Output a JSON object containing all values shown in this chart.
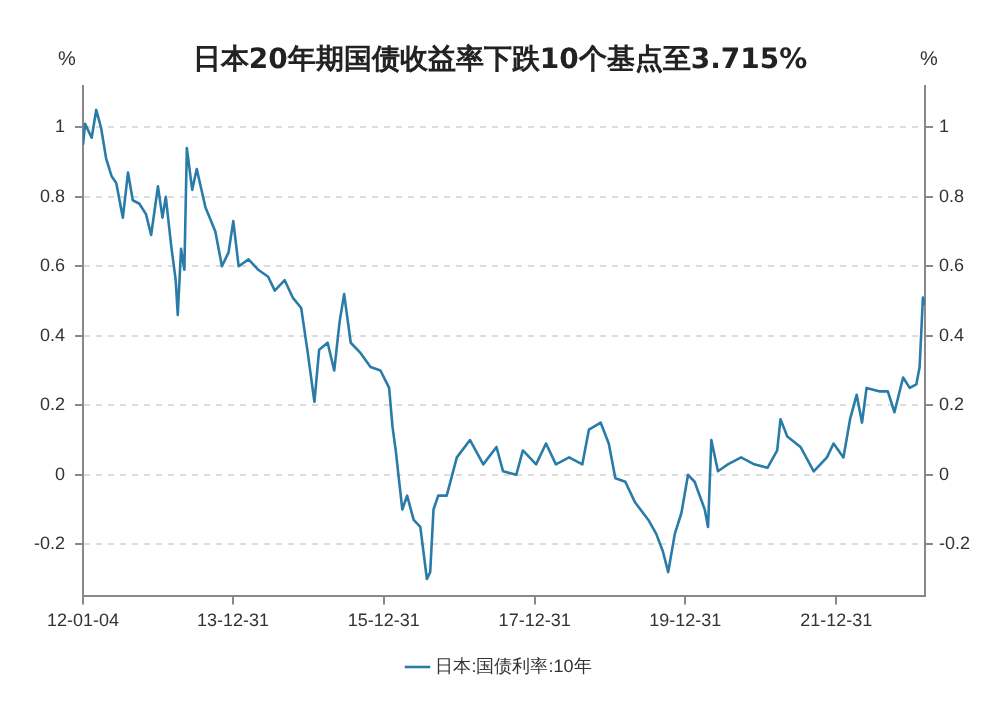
{
  "chart_data": {
    "type": "line",
    "title": "日本20年期国债收益率下跌10个基点至3.715%",
    "ylabel": "%",
    "y2label": "%",
    "x": [
      "2012-01-04",
      "2012-01-14",
      "2012-02-15",
      "2012-03-08",
      "2012-03-31",
      "2012-04-25",
      "2012-05-21",
      "2012-06-13",
      "2012-07-15",
      "2012-08-09",
      "2012-09-01",
      "2012-10-03",
      "2012-11-04",
      "2012-11-29",
      "2013-01-01",
      "2013-01-23",
      "2013-02-08",
      "2013-03-06",
      "2013-03-28",
      "2013-04-07",
      "2013-04-23",
      "2013-05-09",
      "2013-05-21",
      "2013-06-16",
      "2013-07-08",
      "2013-08-19",
      "2013-10-06",
      "2013-11-07",
      "2013-12-09",
      "2014-01-01",
      "2014-01-27",
      "2014-03-16",
      "2014-05-02",
      "2014-06-19",
      "2014-07-21",
      "2014-09-07",
      "2014-10-16",
      "2014-11-26",
      "2014-12-28",
      "2015-01-29",
      "2015-02-21",
      "2015-04-03",
      "2015-05-05",
      "2015-05-31",
      "2015-06-22",
      "2015-07-24",
      "2015-09-10",
      "2015-10-28",
      "2015-12-15",
      "2016-01-26",
      "2016-02-11",
      "2016-02-27",
      "2016-03-11",
      "2016-03-30",
      "2016-04-22",
      "2016-05-24",
      "2016-06-25",
      "2016-07-27",
      "2016-08-12",
      "2016-08-28",
      "2016-09-20",
      "2016-10-31",
      "2016-12-19",
      "2017-02-21",
      "2017-04-26",
      "2017-06-29",
      "2017-07-31",
      "2017-10-03",
      "2017-11-04",
      "2018-01-07",
      "2018-02-24",
      "2018-04-13",
      "2018-06-16",
      "2018-08-19",
      "2018-09-20",
      "2018-11-16",
      "2018-12-25",
      "2019-01-26",
      "2019-03-15",
      "2019-05-02",
      "2019-07-05",
      "2019-08-12",
      "2019-09-13",
      "2019-10-09",
      "2019-11-10",
      "2019-12-12",
      "2020-01-13",
      "2020-02-14",
      "2020-04-03",
      "2020-04-19",
      "2020-05-05",
      "2020-06-06",
      "2020-07-24",
      "2020-09-26",
      "2020-11-29",
      "2021-02-01",
      "2021-03-20",
      "2021-04-05",
      "2021-05-08",
      "2021-07-11",
      "2021-09-13",
      "2021-11-16",
      "2021-12-18",
      "2022-02-04",
      "2022-03-08",
      "2022-04-09",
      "2022-05-05",
      "2022-05-27",
      "2022-07-30",
      "2022-09-07",
      "2022-10-09",
      "2022-11-20",
      "2022-12-22",
      "2023-01-23",
      "2023-02-08",
      "2023-02-24",
      "2023-03-06"
    ],
    "series": [
      {
        "name": "日本:国债利率:10年",
        "color": "#2a7ca8",
        "values": [
          0.95,
          1.01,
          0.97,
          1.05,
          1.0,
          0.91,
          0.86,
          0.84,
          0.74,
          0.87,
          0.79,
          0.78,
          0.75,
          0.69,
          0.83,
          0.74,
          0.8,
          0.66,
          0.56,
          0.46,
          0.65,
          0.59,
          0.94,
          0.82,
          0.88,
          0.77,
          0.7,
          0.6,
          0.64,
          0.73,
          0.6,
          0.62,
          0.59,
          0.57,
          0.53,
          0.56,
          0.51,
          0.48,
          0.35,
          0.21,
          0.36,
          0.38,
          0.3,
          0.44,
          0.52,
          0.38,
          0.35,
          0.31,
          0.3,
          0.25,
          0.14,
          0.07,
          0.0,
          -0.1,
          -0.06,
          -0.13,
          -0.15,
          -0.3,
          -0.28,
          -0.1,
          -0.06,
          -0.06,
          0.05,
          0.1,
          0.03,
          0.08,
          0.01,
          0.0,
          0.07,
          0.03,
          0.09,
          0.03,
          0.05,
          0.03,
          0.13,
          0.15,
          0.09,
          -0.01,
          -0.02,
          -0.08,
          -0.13,
          -0.17,
          -0.22,
          -0.28,
          -0.17,
          -0.11,
          0.0,
          -0.02,
          -0.1,
          -0.15,
          0.1,
          0.01,
          0.03,
          0.05,
          0.03,
          0.02,
          0.07,
          0.16,
          0.11,
          0.08,
          0.01,
          0.05,
          0.09,
          0.05,
          0.16,
          0.23,
          0.15,
          0.25,
          0.24,
          0.24,
          0.18,
          0.28,
          0.25,
          0.26,
          0.31,
          0.51,
          0.49
        ]
      }
    ],
    "xlim": [
      "2012-01-04",
      "2023-03-06"
    ],
    "xticks": [
      {
        "value": "2012-01-04",
        "label": "12-01-04"
      },
      {
        "value": "2013-12-31",
        "label": "13-12-31"
      },
      {
        "value": "2015-12-31",
        "label": "15-12-31"
      },
      {
        "value": "2017-12-31",
        "label": "17-12-31"
      },
      {
        "value": "2019-12-31",
        "label": "19-12-31"
      },
      {
        "value": "2021-12-31",
        "label": "21-12-31"
      }
    ],
    "ylim": [
      -0.35,
      1.12
    ],
    "yticks": [
      -0.2,
      0,
      0.2,
      0.4,
      0.6,
      0.8,
      1
    ],
    "y2lim": [
      -0.35,
      1.12
    ],
    "y2ticks": [
      -0.2,
      0,
      0.2,
      0.4,
      0.6,
      0.8,
      1
    ],
    "grid": "y",
    "legend": "bottom",
    "marker": "none",
    "line_style": "solid"
  }
}
